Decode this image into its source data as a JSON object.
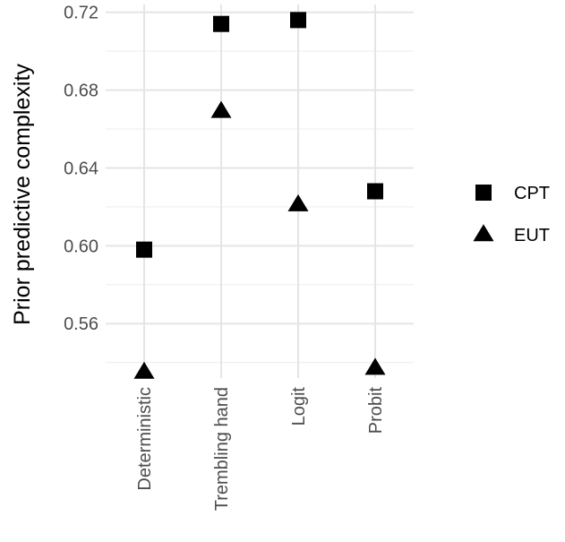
{
  "chart_data": {
    "type": "scatter",
    "title": "",
    "xlabel": "",
    "ylabel": "Prior predictive complexity",
    "categories": [
      "Deterministic",
      "Trembling hand",
      "Logit",
      "Probit"
    ],
    "series": [
      {
        "name": "CPT",
        "marker": "square",
        "values": [
          0.598,
          0.714,
          0.716,
          0.628
        ]
      },
      {
        "name": "EUT",
        "marker": "triangle",
        "values": [
          0.535,
          0.669,
          0.621,
          0.537
        ]
      }
    ],
    "ylim": [
      0.532,
      0.724
    ],
    "yticks": [
      0.56,
      0.6,
      0.64,
      0.68,
      0.72
    ],
    "ytick_labels": [
      "0.56",
      "0.60",
      "0.64",
      "0.68",
      "0.72"
    ],
    "grid": true,
    "legend_position": "right",
    "colors": {
      "marker": "#000000",
      "grid": "#e5e5e5",
      "tick_text": "#4d4d4d"
    }
  }
}
